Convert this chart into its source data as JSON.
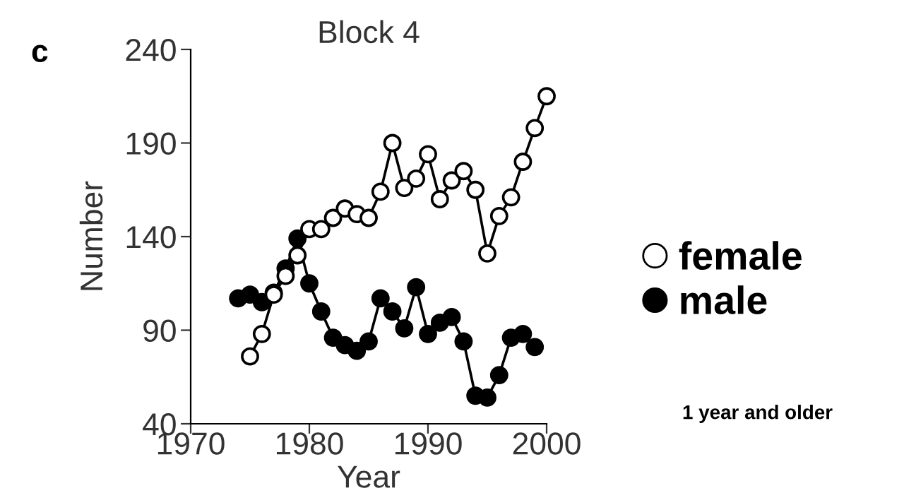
{
  "chart_data": {
    "type": "line",
    "title": "Block 4",
    "xlabel": "Year",
    "ylabel": "Number",
    "annotations": [
      "c",
      "1 year and older"
    ],
    "xlim": [
      1970,
      2000
    ],
    "xticks": [
      1970,
      1980,
      1990,
      2000
    ],
    "ylim": [
      40,
      240
    ],
    "yticks": [
      40,
      90,
      140,
      190,
      240
    ],
    "grid": false,
    "legend": "right",
    "marker": "circle",
    "line_style": "solid",
    "series": [
      {
        "name": "female",
        "color": "#ffffff",
        "x": [
          1975,
          1976,
          1977,
          1978,
          1979,
          1980,
          1981,
          1982,
          1983,
          1984,
          1985,
          1986,
          1987,
          1988,
          1989,
          1990,
          1991,
          1992,
          1993,
          1994,
          1995,
          1996,
          1997,
          1998,
          1999,
          2000
        ],
        "values": [
          76,
          88,
          109,
          119,
          130,
          144,
          144,
          150,
          155,
          152,
          150,
          164,
          190,
          166,
          171,
          184,
          160,
          170,
          175,
          165,
          131,
          151,
          161,
          180,
          198,
          215
        ]
      },
      {
        "name": "male",
        "color": "#000000",
        "x": [
          1974,
          1975,
          1976,
          1977,
          1978,
          1979,
          1980,
          1981,
          1982,
          1983,
          1984,
          1985,
          1986,
          1987,
          1988,
          1989,
          1990,
          1991,
          1992,
          1993,
          1994,
          1995,
          1996,
          1997,
          1998,
          1999
        ],
        "values": [
          107,
          109,
          105,
          110,
          123,
          139,
          115,
          100,
          86,
          82,
          79,
          84,
          107,
          100,
          91,
          113,
          88,
          94,
          97,
          84,
          55,
          54,
          66,
          86,
          88,
          81
        ]
      }
    ]
  }
}
